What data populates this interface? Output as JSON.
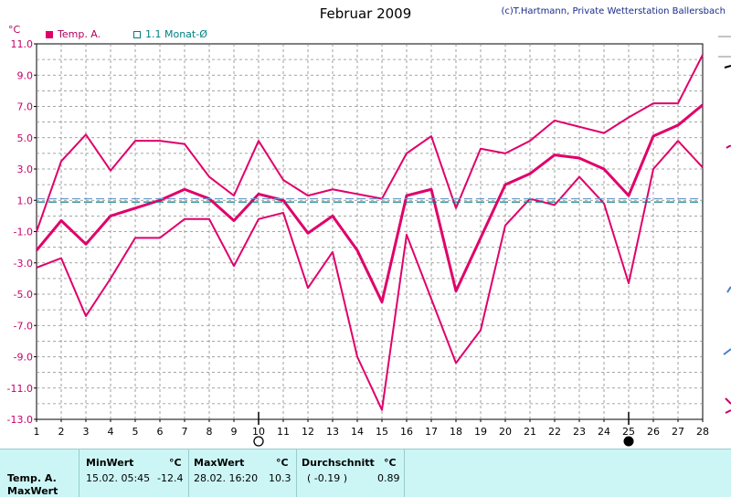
{
  "header": {
    "title": "Februar 2009",
    "credit": "(c)T.Hartmann, Private Wetterstation Ballersbach",
    "unit": "°C"
  },
  "legend": [
    {
      "label": "Temp. A.",
      "color": "#e0006a",
      "style": "filled"
    },
    {
      "label": "1.1 Monat-Ø",
      "color": "#008080",
      "style": "outline"
    }
  ],
  "chart_data": {
    "type": "line",
    "x": [
      1,
      2,
      3,
      4,
      5,
      6,
      7,
      8,
      9,
      10,
      11,
      12,
      13,
      14,
      15,
      16,
      17,
      18,
      19,
      20,
      21,
      22,
      23,
      24,
      25,
      26,
      27,
      28
    ],
    "ylim": [
      -13,
      11
    ],
    "yticks": [
      "11.0",
      "9.0",
      "7.0",
      "5.0",
      "3.0",
      "1.0",
      "-1.0",
      "-3.0",
      "-5.0",
      "-7.0",
      "-9.0",
      "-11.0",
      "-13.0"
    ],
    "grid": true,
    "series": [
      {
        "name": "Temp. A.",
        "role": "max",
        "color": "#e0006a",
        "values": [
          -1.0,
          3.5,
          5.2,
          2.9,
          4.8,
          4.8,
          4.6,
          2.5,
          1.3,
          4.8,
          2.3,
          1.3,
          1.7,
          1.4,
          1.1,
          4.0,
          5.1,
          0.5,
          4.3,
          4.0,
          4.8,
          6.1,
          5.7,
          5.3,
          6.3,
          7.2,
          7.2,
          10.3
        ]
      },
      {
        "name": "Temp. A.",
        "role": "mean",
        "color": "#e0006a",
        "values": [
          -2.2,
          -0.3,
          -1.8,
          0.0,
          0.5,
          1.0,
          1.7,
          1.1,
          -0.3,
          1.4,
          1.0,
          -1.1,
          0.0,
          -2.2,
          -5.5,
          1.3,
          1.7,
          -4.8,
          -1.4,
          2.0,
          2.7,
          3.9,
          3.7,
          3.0,
          1.3,
          5.1,
          5.8,
          7.1
        ]
      },
      {
        "name": "Temp. A.",
        "role": "min",
        "color": "#e0006a",
        "values": [
          -3.3,
          -2.7,
          -6.4,
          -4.0,
          -1.4,
          -1.4,
          -0.2,
          -0.2,
          -3.2,
          -0.2,
          0.2,
          -4.6,
          -2.3,
          -9.0,
          -12.4,
          -1.2,
          -5.3,
          -9.4,
          -7.3,
          -0.6,
          1.1,
          0.7,
          2.5,
          0.8,
          -4.3,
          3.0,
          4.8,
          3.1
        ]
      },
      {
        "name": "1.1 Monat-Ø",
        "role": "monthly-average",
        "color": "#008080",
        "dashed": true,
        "values": [
          0.89,
          0.89,
          0.89,
          0.89,
          0.89,
          0.89,
          0.89,
          0.89,
          0.89,
          0.89,
          0.89,
          0.89,
          0.89,
          0.89,
          0.89,
          0.89,
          0.89,
          0.89,
          0.89,
          0.89,
          0.89,
          0.89,
          0.89,
          0.89,
          0.89,
          0.89,
          0.89,
          0.89
        ]
      },
      {
        "name": "1.1 Monat-Ø",
        "role": "monthly-average-2",
        "color": "#6699cc",
        "dashed": true,
        "values": [
          1.1,
          1.1,
          1.1,
          1.1,
          1.1,
          1.1,
          1.1,
          1.1,
          1.1,
          1.1,
          1.1,
          1.1,
          1.1,
          1.1,
          1.1,
          1.1,
          1.1,
          1.1,
          1.1,
          1.1,
          1.1,
          1.1,
          1.1,
          1.1,
          1.1,
          1.1,
          1.1,
          1.1
        ]
      }
    ],
    "moon_phases": [
      {
        "day": 10,
        "phase": "full moon"
      },
      {
        "day": 25,
        "phase": "new moon"
      }
    ]
  },
  "stats": {
    "row_label_1": "Temp. A.",
    "row_label_2": "MaxWert",
    "min_header": "MinWert",
    "unit_header": "°C",
    "min_datetime": "15.02.  05:45",
    "min_value": "-12.4",
    "max_header": "MaxWert",
    "max_datetime": "28.02.  16:20",
    "max_value": "10.3",
    "avg_header": "Durchschnitt",
    "avg_extra": "( -0.19 )",
    "avg_value": "0.89"
  }
}
